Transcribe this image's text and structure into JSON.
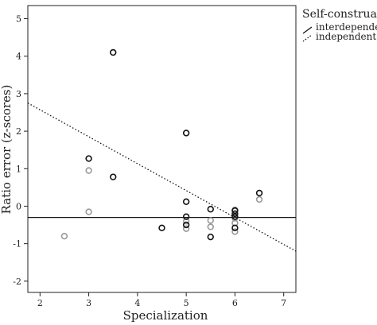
{
  "chart_data": {
    "type": "scatter",
    "title": "",
    "xlabel": "Specialization",
    "ylabel": "Ratio error (z-scores)",
    "xlim": [
      1.75,
      7.25
    ],
    "ylim": [
      -2.3,
      5.35
    ],
    "xticks": [
      "2",
      "3",
      "4",
      "5",
      "6",
      "7"
    ],
    "yticks": [
      "-2",
      "-1",
      "0",
      "1",
      "2",
      "3",
      "4",
      "5"
    ],
    "grid": false,
    "legend": {
      "title": "Self-construal",
      "placement": "right",
      "entries": [
        "interdependent",
        "independent"
      ]
    },
    "series": [
      {
        "name": "interdependent",
        "color": "#111111",
        "points": [
          [
            3.0,
            1.27
          ],
          [
            3.5,
            4.1
          ],
          [
            3.5,
            0.78
          ],
          [
            4.5,
            -0.58
          ],
          [
            5.0,
            1.95
          ],
          [
            5.0,
            0.12
          ],
          [
            5.0,
            -0.28
          ],
          [
            5.0,
            -0.5
          ],
          [
            5.5,
            -0.08
          ],
          [
            5.5,
            -0.82
          ],
          [
            6.0,
            -0.12
          ],
          [
            6.0,
            -0.2
          ],
          [
            6.0,
            -0.28
          ],
          [
            6.0,
            -0.58
          ],
          [
            6.5,
            0.35
          ]
        ],
        "fit": {
          "type": "linear",
          "line_style": "solid",
          "from": [
            1.75,
            -0.3
          ],
          "to": [
            7.25,
            -0.3
          ]
        }
      },
      {
        "name": "independent",
        "color": "#999999",
        "points": [
          [
            2.5,
            -0.8
          ],
          [
            3.0,
            0.95
          ],
          [
            3.0,
            -0.15
          ],
          [
            5.0,
            -0.4
          ],
          [
            5.0,
            -0.6
          ],
          [
            5.5,
            -0.38
          ],
          [
            5.5,
            -0.55
          ],
          [
            6.0,
            -0.1
          ],
          [
            6.0,
            -0.32
          ],
          [
            6.0,
            -0.45
          ],
          [
            6.0,
            -0.68
          ],
          [
            6.5,
            0.18
          ]
        ],
        "fit": {
          "type": "linear",
          "line_style": "dotted",
          "from": [
            1.75,
            2.75
          ],
          "to": [
            7.25,
            -1.2
          ]
        }
      }
    ]
  }
}
